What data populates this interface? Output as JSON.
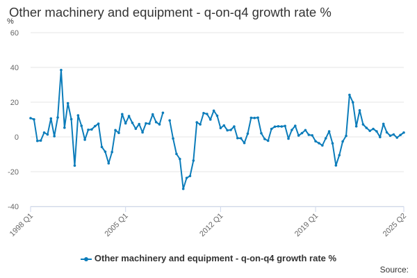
{
  "chart_data": {
    "type": "line",
    "title": "Other machinery and equipment - q-on-q4 growth rate %",
    "ylabel": "%",
    "xlabel": "",
    "ylim": [
      -40,
      60
    ],
    "yticks": [
      60,
      40,
      20,
      0,
      -20,
      -40
    ],
    "xtick_labels": [
      "1998 Q1",
      "2005 Q1",
      "2012 Q1",
      "2019 Q1",
      "2025 Q2"
    ],
    "series": [
      {
        "name": "Other machinery and equipment - q-on-q4 growth rate %",
        "color": "#0b7cba",
        "start": "1998 Q1",
        "values": [
          10.8,
          10.1,
          -2.3,
          -2.1,
          2.5,
          1.4,
          10.6,
          0.4,
          11.2,
          38.5,
          5.3,
          19.4,
          10.2,
          -16.5,
          12.4,
          6.4,
          -1.6,
          4.1,
          4.3,
          6.2,
          7.6,
          -5.8,
          -8.5,
          -15.2,
          -8.7,
          3.9,
          2.3,
          13.1,
          7.8,
          12.0,
          8.1,
          4.7,
          7.4,
          2.6,
          7.8,
          7.6,
          13.0,
          8.5,
          7.2,
          13.9,
          null,
          9.5,
          -0.9,
          -9.8,
          -12.7,
          -29.9,
          -23.6,
          -22.5,
          -13.6,
          8.4,
          7.2,
          13.7,
          13.2,
          10.0,
          15.1,
          12.2,
          5.1,
          6.6,
          3.8,
          4.0,
          6.0,
          -0.7,
          -0.8,
          -3.5,
          1.9,
          11.0,
          10.9,
          11.1,
          2.1,
          -1.2,
          -2.2,
          4.6,
          5.9,
          6.1,
          6.0,
          6.3,
          -1.0,
          4.0,
          6.4,
          0.8,
          2.2,
          3.9,
          1.2,
          0.9,
          -2.5,
          -3.6,
          -4.9,
          -0.8,
          3.2,
          -3.7,
          -16.4,
          -10.5,
          -2.6,
          0.6,
          24.2,
          19.9,
          6.1,
          15.3,
          7.2,
          5.2,
          3.5,
          4.6,
          3.2,
          -0.1,
          7.5,
          2.6,
          0.7,
          1.4,
          -0.4,
          1.1,
          2.5
        ]
      }
    ]
  },
  "legend": {
    "label": "Other machinery and equipment - q-on-q4 growth rate %"
  },
  "source": {
    "label": "Source:"
  }
}
